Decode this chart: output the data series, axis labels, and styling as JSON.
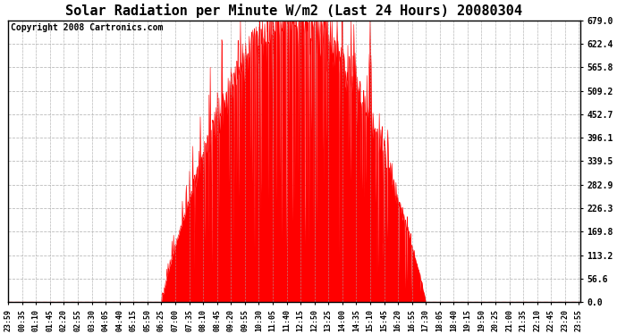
{
  "title": "Solar Radiation per Minute W/m2 (Last 24 Hours) 20080304",
  "copyright": "Copyright 2008 Cartronics.com",
  "y_max": 679.0,
  "y_ticks": [
    0.0,
    56.6,
    113.2,
    169.8,
    226.3,
    282.9,
    339.5,
    396.1,
    452.7,
    509.2,
    565.8,
    622.4,
    679.0
  ],
  "bar_color": "#FF0000",
  "background_color": "#FFFFFF",
  "grid_color": "#AAAAAA",
  "dashed_line_color": "#FF0000",
  "x_labels": [
    "23:59",
    "00:35",
    "01:10",
    "01:45",
    "02:20",
    "02:55",
    "03:30",
    "04:05",
    "04:40",
    "05:15",
    "05:50",
    "06:25",
    "07:00",
    "07:35",
    "08:10",
    "08:45",
    "09:20",
    "09:55",
    "10:30",
    "11:05",
    "11:40",
    "12:15",
    "12:50",
    "13:25",
    "14:00",
    "14:35",
    "15:10",
    "15:45",
    "16:20",
    "16:55",
    "17:30",
    "18:05",
    "18:40",
    "19:15",
    "19:50",
    "20:25",
    "21:00",
    "21:35",
    "22:10",
    "22:45",
    "23:20",
    "23:55"
  ],
  "title_fontsize": 11,
  "copyright_fontsize": 7,
  "tick_fontsize": 7
}
